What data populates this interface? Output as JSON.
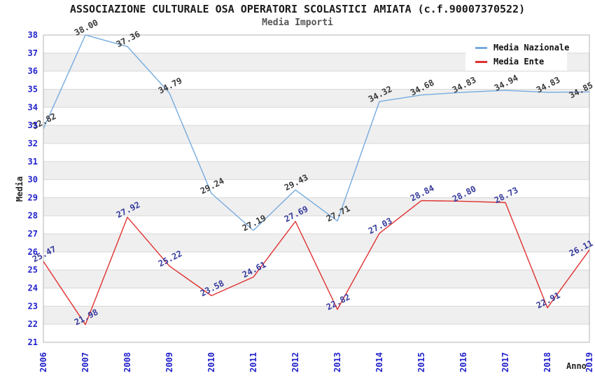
{
  "chart_data": {
    "type": "line",
    "title": "ASSOCIAZIONE CULTURALE OSA OPERATORI SCOLASTICI AMIATA (c.f.90007370522)",
    "subtitle": "Media Importi",
    "xlabel": "Anno",
    "ylabel": "Media",
    "categories": [
      "2006",
      "2007",
      "2008",
      "2009",
      "2010",
      "2011",
      "2012",
      "2013",
      "2014",
      "2015",
      "2016",
      "2017",
      "2018",
      "2019"
    ],
    "series": [
      {
        "name": "Media Nazionale",
        "color": "#76abdf",
        "label_color": "#3a3a3a",
        "values": [
          32.82,
          38.0,
          37.36,
          34.79,
          29.24,
          27.19,
          29.43,
          27.71,
          34.32,
          34.68,
          34.83,
          34.94,
          34.83,
          34.85
        ]
      },
      {
        "name": "Media Ente",
        "color": "#e03131",
        "label_color": "#363a9c",
        "values": [
          25.47,
          21.98,
          27.92,
          25.22,
          23.58,
          24.61,
          27.69,
          22.82,
          27.03,
          28.84,
          28.8,
          28.73,
          22.91,
          26.11
        ]
      }
    ],
    "ylim": [
      21,
      38
    ],
    "ytick_step": 1,
    "grid": true,
    "legend_position": "top-right",
    "colors": {
      "axis_tick_text": "#2222cc",
      "band_fill": "#efefef",
      "grid_line": "#d8d8d8",
      "plot_border": "#b3b3b3",
      "background": "#ffffff"
    }
  }
}
